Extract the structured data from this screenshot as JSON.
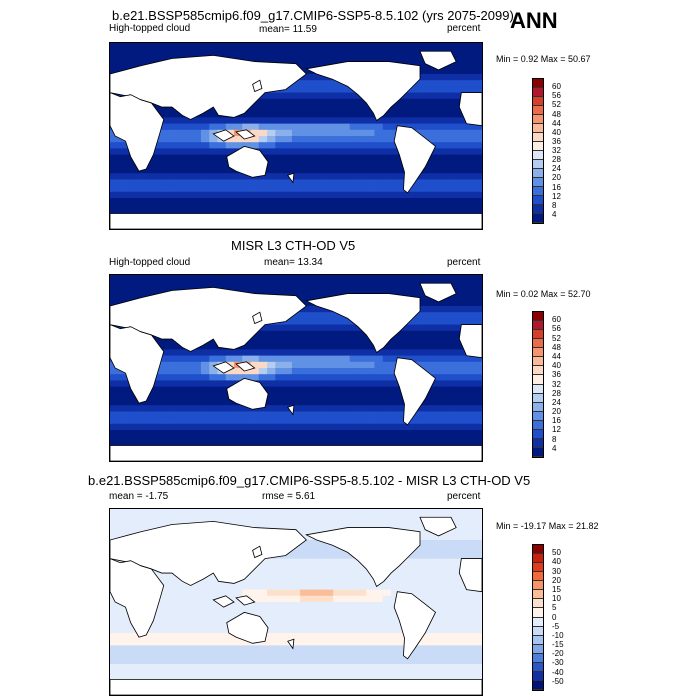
{
  "season": "ANN",
  "panels": [
    {
      "title": "b.e21.BSSP585cmip6.f09_g17.CMIP6-SSP5-8.5.102 (yrs 2075-2099)",
      "left_label": "High-topped cloud",
      "center_label": "mean=  11.59",
      "right_label": "percent",
      "stats": "Min =   0.92 Max =  50.67",
      "colorbar_ticks": [
        "60",
        "56",
        "52",
        "48",
        "44",
        "40",
        "36",
        "32",
        "28",
        "24",
        "20",
        "16",
        "12",
        "8",
        "4"
      ],
      "colorbar_colors": [
        "#8b0000",
        "#b2182b",
        "#d6402b",
        "#ec6b4b",
        "#f4956f",
        "#f9b99a",
        "#fcd9c4",
        "#fdeee4",
        "#dbe6f7",
        "#b4cdf0",
        "#8cb1ea",
        "#6091e4",
        "#3a6fdc",
        "#1f4fcb",
        "#0e2fa6",
        "#001a80"
      ],
      "style": "model"
    },
    {
      "title": "MISR L3 CTH-OD V5",
      "left_label": "High-topped cloud",
      "center_label": "mean=  13.34",
      "right_label": "percent",
      "stats": "Min =   0.02 Max =  52.70",
      "colorbar_ticks": [
        "60",
        "56",
        "52",
        "48",
        "44",
        "40",
        "36",
        "32",
        "28",
        "24",
        "20",
        "16",
        "12",
        "8",
        "4"
      ],
      "colorbar_colors": [
        "#8b0000",
        "#b2182b",
        "#d6402b",
        "#ec6b4b",
        "#f4956f",
        "#f9b99a",
        "#fcd9c4",
        "#fdeee4",
        "#dbe6f7",
        "#b4cdf0",
        "#8cb1ea",
        "#6091e4",
        "#3a6fdc",
        "#1f4fcb",
        "#0e2fa6",
        "#001a80"
      ],
      "style": "obs"
    },
    {
      "title": "b.e21.BSSP585cmip6.f09_g17.CMIP6-SSP5-8.5.102 - MISR L3 CTH-OD V5",
      "left_label": "mean =  -1.75",
      "center_label": "rmse =   5.61",
      "right_label": "percent",
      "stats": "Min = -19.17 Max =  21.82",
      "colorbar_ticks": [
        "50",
        "40",
        "30",
        "20",
        "15",
        "10",
        "5",
        "0",
        "-5",
        "-10",
        "-15",
        "-20",
        "-30",
        "-40",
        "-50"
      ],
      "colorbar_colors": [
        "#8b0000",
        "#c8200e",
        "#e23b1a",
        "#f26a3a",
        "#f79566",
        "#fbbd98",
        "#fde0cc",
        "#fff3ec",
        "#e4edfb",
        "#c9dbf6",
        "#a6c4f0",
        "#7ea6e8",
        "#4f7fdc",
        "#2a57c8",
        "#1232a4",
        "#00147a"
      ],
      "style": "diff"
    }
  ]
}
